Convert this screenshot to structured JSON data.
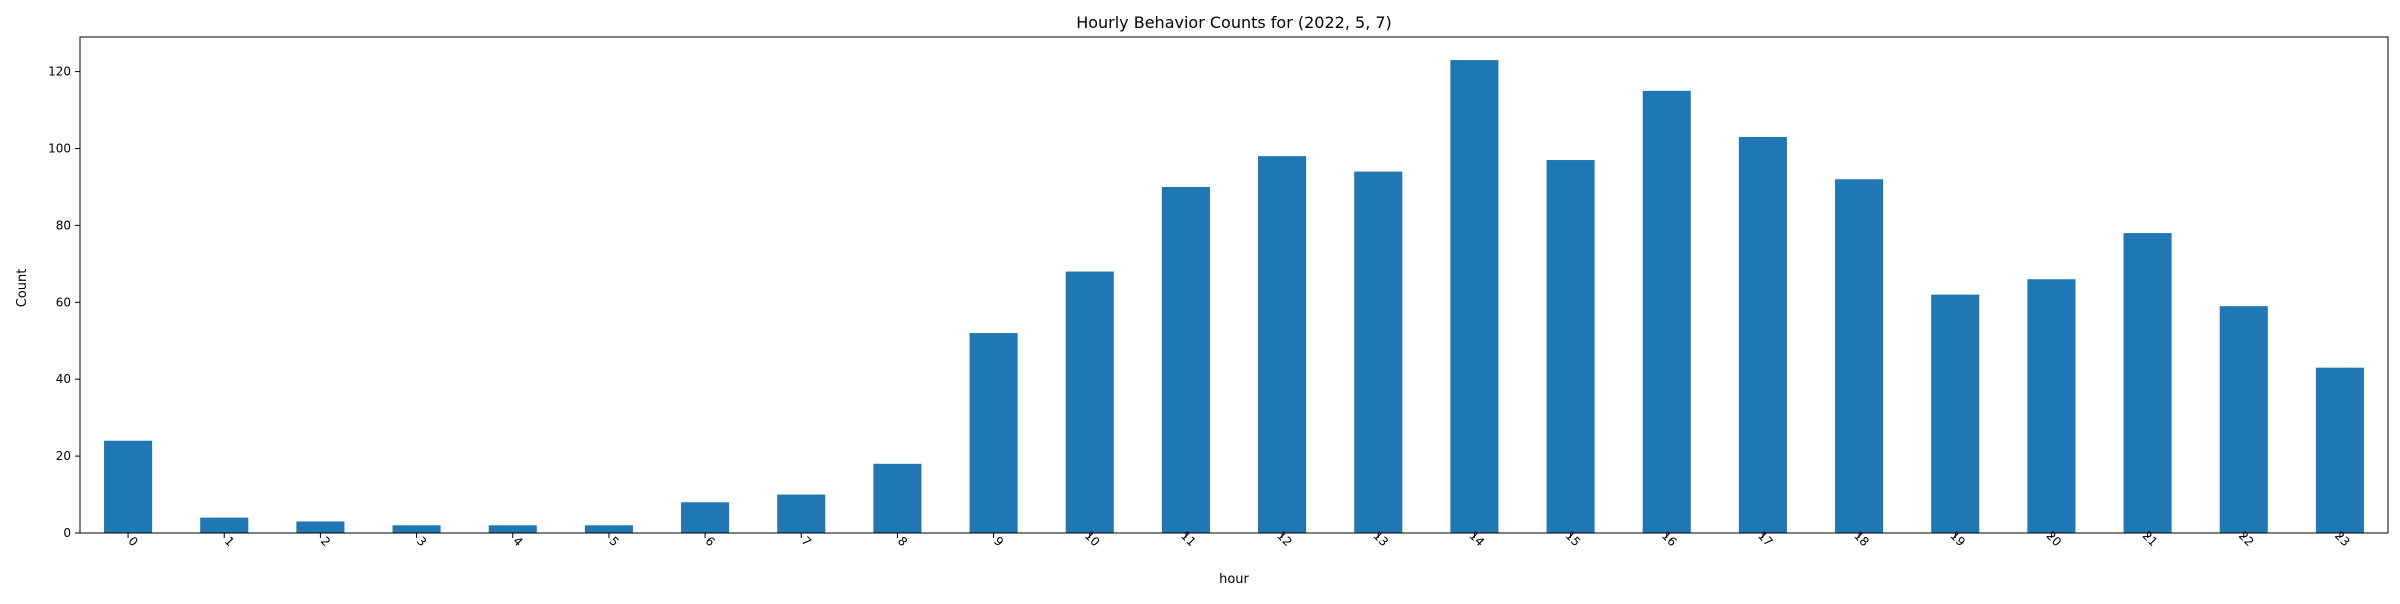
{
  "chart_data": {
    "type": "bar",
    "title": "Hourly Behavior Counts for (2022, 5, 7)",
    "xlabel": "hour",
    "ylabel": "Count",
    "categories": [
      "0",
      "1",
      "2",
      "3",
      "4",
      "5",
      "6",
      "7",
      "8",
      "9",
      "10",
      "11",
      "12",
      "13",
      "14",
      "15",
      "16",
      "17",
      "18",
      "19",
      "20",
      "21",
      "22",
      "23"
    ],
    "values": [
      24,
      4,
      3,
      2,
      2,
      2,
      8,
      10,
      18,
      52,
      68,
      90,
      98,
      94,
      123,
      97,
      115,
      103,
      92,
      62,
      66,
      78,
      59,
      43
    ],
    "ylim": [
      0,
      129
    ],
    "yticks": [
      0,
      20,
      40,
      60,
      80,
      100,
      120
    ],
    "grid": false,
    "legend": "none",
    "bar_color": "#1f77b4",
    "x_tick_rotation": "45 degrees"
  }
}
